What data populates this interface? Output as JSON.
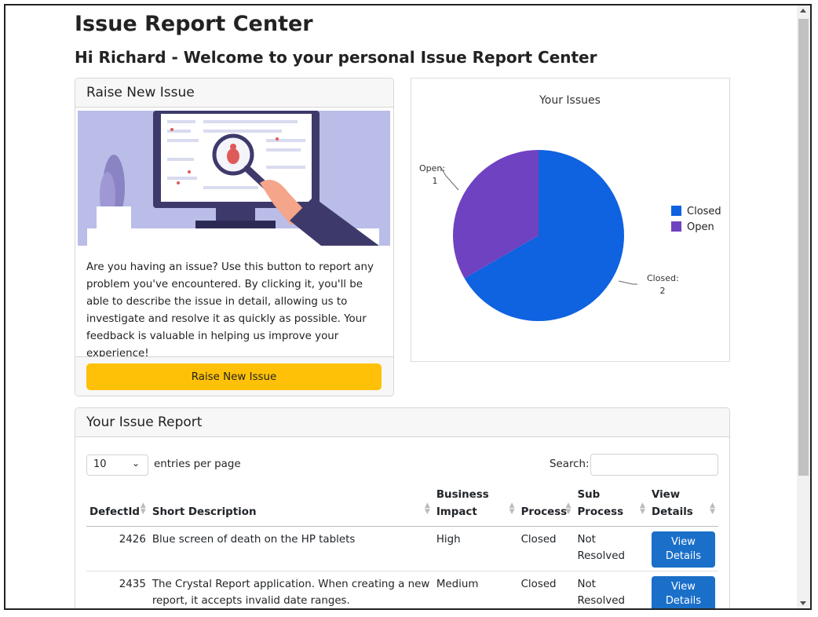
{
  "page": {
    "title": "Issue Report Center",
    "greeting": "Hi Richard - Welcome to your personal Issue Report Center"
  },
  "raise_card": {
    "header": "Raise New Issue",
    "description": "Are you having an issue? Use this button to report any problem you've encountered. By clicking it, you'll be able to describe the issue in detail, allowing us to investigate and resolve it as quickly as possible. Your feedback is valuable in helping us improve your experience!",
    "button_label": "Raise New Issue"
  },
  "chart_data": {
    "type": "pie",
    "title": "Your Issues",
    "categories": [
      "Closed",
      "Open"
    ],
    "values": [
      2,
      1
    ],
    "colors": [
      "#0f62e0",
      "#6f42c1"
    ],
    "slice_labels": [
      "Closed:",
      "Open:"
    ],
    "legend_placement": "right"
  },
  "report": {
    "header": "Your Issue Report",
    "entries_value": "10",
    "entries_label": "entries per page",
    "search_label": "Search:",
    "search_value": "",
    "columns": [
      "DefectId",
      "Short Description",
      "Business Impact",
      "Process",
      "Sub Process",
      "View Details"
    ],
    "rows": [
      {
        "id": "2426",
        "description": "Blue screen of death on the HP tablets",
        "impact": "High",
        "process": "Closed",
        "sub_process": "Not Resolved",
        "action": "View Details"
      },
      {
        "id": "2435",
        "description": "The Crystal Report application. When creating a new report, it accepts invalid date ranges.",
        "impact": "Medium",
        "process": "Closed",
        "sub_process": "Not Resolved",
        "action": "View Details"
      }
    ]
  }
}
